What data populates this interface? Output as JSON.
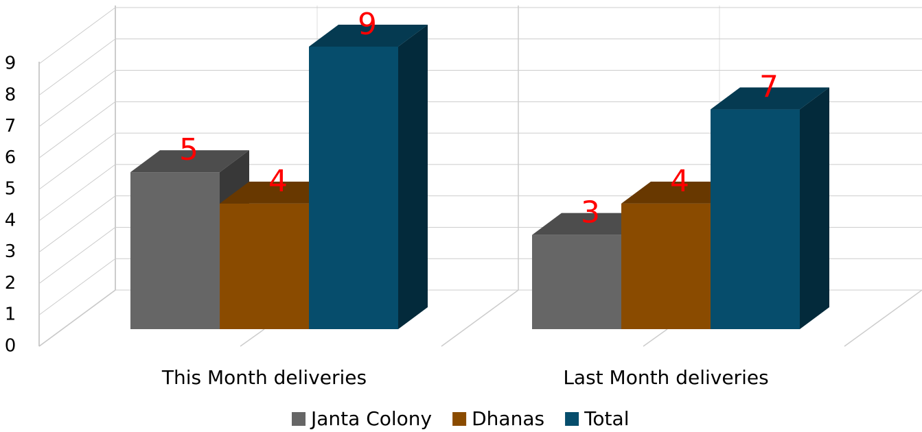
{
  "chart_data": {
    "type": "bar3d",
    "categories": [
      "This Month deliveries",
      "Last Month deliveries"
    ],
    "series": [
      {
        "name": "Janta Colony",
        "color": "#666666",
        "values": [
          5,
          3
        ]
      },
      {
        "name": "Dhanas",
        "color": "#8a4b00",
        "values": [
          4,
          4
        ]
      },
      {
        "name": "Total",
        "color": "#064d6c",
        "values": [
          9,
          7
        ]
      }
    ],
    "ylim": [
      0,
      9
    ],
    "yticks": [
      0,
      1,
      2,
      3,
      4,
      5,
      6,
      7,
      8,
      9
    ],
    "grid": true,
    "legend": "bottom",
    "value_label_color": "#ff0000"
  }
}
